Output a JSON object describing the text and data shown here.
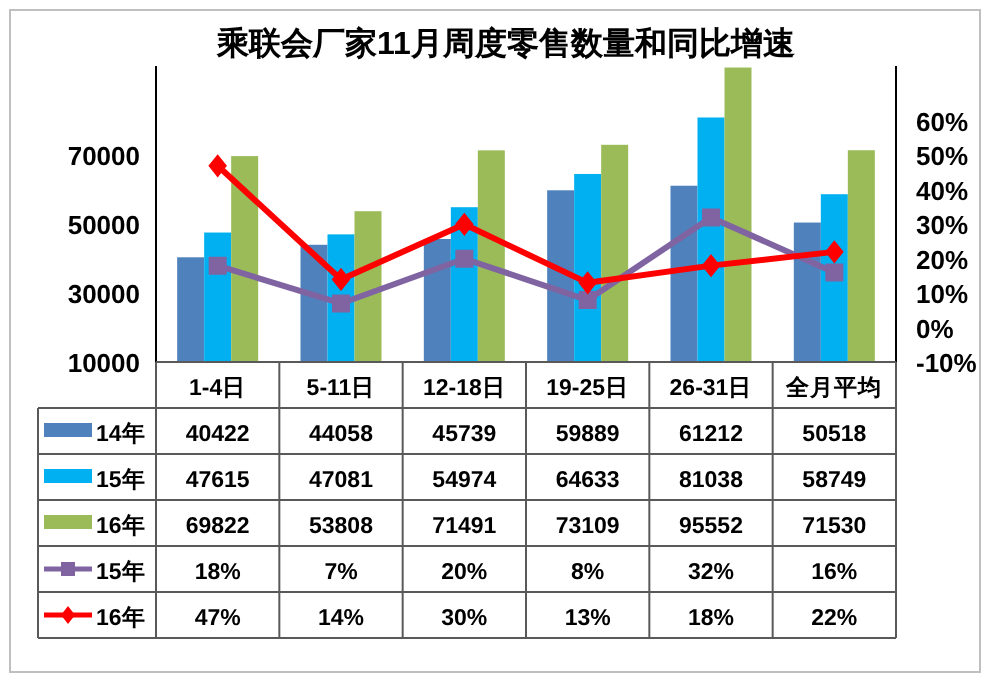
{
  "chart_data": {
    "type": "bar",
    "title": "乘联会厂家11月周度零售数量和同比增速",
    "categories": [
      "1-4日",
      "5-11日",
      "12-18日",
      "19-25日",
      "26-31日",
      "全月平均"
    ],
    "series": [
      {
        "name": "14年",
        "color": "#4f81bd",
        "values": [
          40422,
          44058,
          45739,
          59889,
          61212,
          50518
        ],
        "value_labels": [
          "40422",
          "44058",
          "45739",
          "59889",
          "61212",
          "50518"
        ]
      },
      {
        "name": "15年",
        "color": "#00b0f0",
        "values": [
          47615,
          47081,
          54974,
          64633,
          81038,
          58749
        ],
        "value_labels": [
          "47615",
          "47081",
          "54974",
          "64633",
          "81038",
          "58749"
        ]
      },
      {
        "name": "16年",
        "color": "#9bbb59",
        "values": [
          69822,
          53808,
          71491,
          73109,
          95552,
          71530
        ],
        "value_labels": [
          "69822",
          "53808",
          "71491",
          "73109",
          "95552",
          "71530"
        ]
      },
      {
        "name": "15年",
        "type": "line",
        "axis": "y2",
        "marker": "square",
        "color": "#8064a2",
        "values": [
          18,
          7,
          20,
          8,
          32,
          16
        ],
        "value_labels": [
          "18%",
          "7%",
          "20%",
          "8%",
          "32%",
          "16%"
        ]
      },
      {
        "name": "16年",
        "type": "line",
        "axis": "y2",
        "marker": "diamond",
        "color": "#ff0000",
        "values": [
          47,
          14,
          30,
          13,
          18,
          22
        ],
        "value_labels": [
          "47%",
          "14%",
          "30%",
          "13%",
          "18%",
          "22%"
        ]
      }
    ],
    "ylim": [
      10000,
      96000
    ],
    "yticks": [
      10000,
      30000,
      50000,
      70000
    ],
    "y2lim": [
      -10,
      76
    ],
    "y2ticks": [
      {
        "value": -10,
        "label": "-10%"
      },
      {
        "value": 0,
        "label": "0%"
      },
      {
        "value": 10,
        "label": "10%"
      },
      {
        "value": 20,
        "label": "20%"
      },
      {
        "value": 30,
        "label": "30%"
      },
      {
        "value": 40,
        "label": "40%"
      },
      {
        "value": 50,
        "label": "50%"
      },
      {
        "value": 60,
        "label": "60%"
      }
    ],
    "grid": false,
    "legend": "left"
  }
}
